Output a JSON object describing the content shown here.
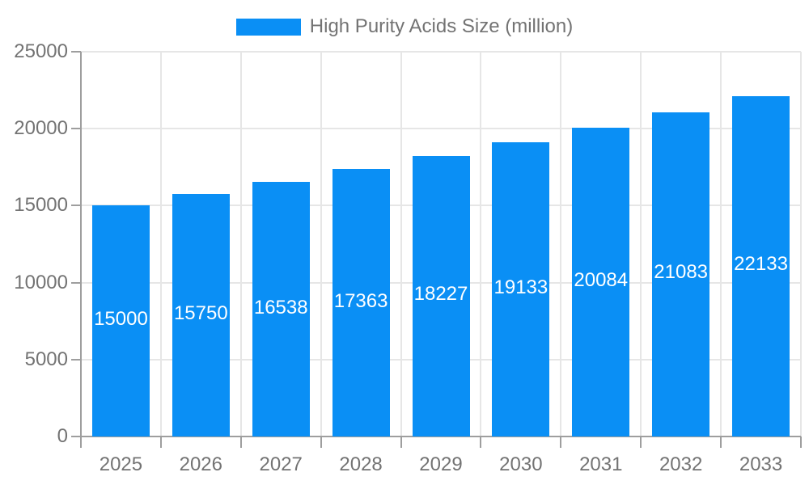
{
  "chart_data": {
    "type": "bar",
    "title": "High Purity Acids Size (million)",
    "categories": [
      "2025",
      "2026",
      "2027",
      "2028",
      "2029",
      "2030",
      "2031",
      "2032",
      "2033"
    ],
    "series": [
      {
        "name": "High Purity Acids Size (million)",
        "values": [
          15000,
          15750,
          16538,
          17363,
          18227,
          19133,
          20084,
          21083,
          22133
        ]
      }
    ],
    "value_labels": [
      "15000",
      "15750",
      "16538",
      "17363",
      "18227",
      "19133",
      "20084",
      "21083",
      "22133"
    ],
    "xlabel": "",
    "ylabel": "",
    "ylim": [
      0,
      25000
    ],
    "yticks": [
      0,
      5000,
      10000,
      15000,
      20000,
      25000
    ],
    "ytick_labels": [
      "0",
      "5000",
      "10000",
      "15000",
      "20000",
      "25000"
    ],
    "grid": true,
    "legend_position": "top",
    "colors": {
      "bar": "#0a8ff5",
      "value_label": "#ffffff",
      "axis_text": "#737373",
      "legend_text": "#737373",
      "grid_line": "#e6e6e6",
      "axis_line": "#9e9e9e",
      "background": "#ffffff"
    }
  }
}
